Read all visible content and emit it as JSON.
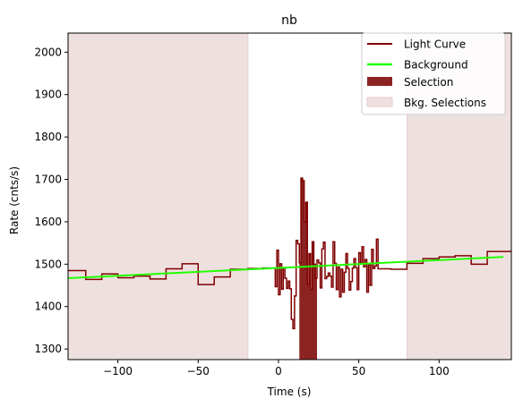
{
  "chart_data": {
    "type": "line",
    "title": "nb",
    "xlabel": "Time (s)",
    "ylabel": "Rate (cnts/s)",
    "xlim": [
      -131,
      145
    ],
    "ylim": [
      1275,
      2045
    ],
    "xticks": [
      -100,
      -50,
      0,
      50,
      100
    ],
    "yticks": [
      1300,
      1400,
      1500,
      1600,
      1700,
      1800,
      1900,
      2000
    ],
    "grid": false,
    "legend_position": "top-right",
    "legend": [
      "Light Curve",
      "Background",
      "Selection",
      "Bkg. Selections"
    ],
    "colors": {
      "light_curve": "#7f0000",
      "background": "#22ff00",
      "selection": "#8b2323",
      "bkg_selection": "#efe0e0",
      "bkg_selection_edge": "#e5cccc"
    },
    "bkg_selections": [
      [
        -131,
        -19
      ],
      [
        80,
        145
      ]
    ],
    "selection": [
      13,
      24
    ],
    "background_line": {
      "x": [
        -131,
        140
      ],
      "y": [
        1467,
        1517
      ]
    },
    "light_curve": {
      "x": [
        -131,
        -120,
        -110,
        -100,
        -90,
        -80,
        -70,
        -60,
        -50,
        -40,
        -30,
        -19,
        -10,
        -2,
        -1,
        0,
        1,
        2,
        3,
        4,
        5,
        6,
        7,
        8,
        9,
        10,
        11,
        12,
        13,
        14,
        15,
        16,
        17,
        18,
        19,
        20,
        21,
        22,
        23,
        24,
        25,
        26,
        27,
        28,
        29,
        30,
        31,
        32,
        33,
        34,
        35,
        36,
        37,
        38,
        39,
        40,
        41,
        42,
        43,
        44,
        45,
        46,
        47,
        48,
        49,
        50,
        51,
        52,
        53,
        54,
        55,
        56,
        57,
        58,
        59,
        60,
        61,
        62,
        70,
        80,
        90,
        100,
        110,
        120,
        130
      ],
      "y": [
        1485,
        1464,
        1477,
        1468,
        1472,
        1465,
        1489,
        1501,
        1452,
        1470,
        1488,
        1490,
        1491,
        1447,
        1533,
        1428,
        1501,
        1441,
        1492,
        1467,
        1443,
        1460,
        1442,
        1370,
        1348,
        1425,
        1556,
        1548,
        1503,
        1703,
        1697,
        1600,
        1646,
        1453,
        1525,
        1440,
        1553,
        1500,
        1467,
        1510,
        1503,
        1444,
        1536,
        1552,
        1466,
        1471,
        1479,
        1472,
        1446,
        1553,
        1502,
        1440,
        1493,
        1423,
        1488,
        1434,
        1481,
        1525,
        1490,
        1439,
        1459,
        1491,
        1513,
        1492,
        1440,
        1527,
        1501,
        1541,
        1494,
        1511,
        1434,
        1499,
        1450,
        1535,
        1490,
        1496,
        1559,
        1489,
        1488,
        1502,
        1513,
        1517,
        1520,
        1500,
        1530
      ],
      "end_x": 145
    }
  }
}
